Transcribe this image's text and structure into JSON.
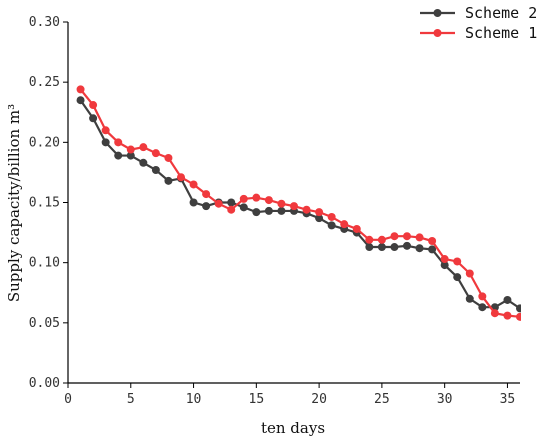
{
  "chart_data": {
    "type": "line",
    "xlabel": "ten days",
    "ylabel": "Supply capacity/billion m³",
    "xlim": [
      0,
      36
    ],
    "ylim": [
      0,
      0.3
    ],
    "x_ticks": [
      "0",
      "5",
      "10",
      "15",
      "20",
      "25",
      "30",
      "35"
    ],
    "y_ticks": [
      "0.00",
      "0.05",
      "0.10",
      "0.15",
      "0.20",
      "0.25",
      "0.30"
    ],
    "grid": false,
    "legend_position": "top-right",
    "x": [
      1,
      2,
      3,
      4,
      5,
      6,
      7,
      8,
      9,
      10,
      11,
      12,
      13,
      14,
      15,
      16,
      17,
      18,
      19,
      20,
      21,
      22,
      23,
      24,
      25,
      26,
      27,
      28,
      29,
      30,
      31,
      32,
      33,
      34,
      35,
      36
    ],
    "series": [
      {
        "name": "Scheme 2",
        "color": "#3f3f3f",
        "values": [
          0.235,
          0.22,
          0.2,
          0.189,
          0.189,
          0.183,
          0.177,
          0.168,
          0.17,
          0.15,
          0.147,
          0.15,
          0.15,
          0.146,
          0.142,
          0.143,
          0.143,
          0.143,
          0.141,
          0.137,
          0.131,
          0.128,
          0.125,
          0.113,
          0.113,
          0.113,
          0.114,
          0.112,
          0.111,
          0.098,
          0.088,
          0.07,
          0.063,
          0.063,
          0.069,
          0.062
        ]
      },
      {
        "name": "Scheme 1",
        "color": "#f0393d",
        "values": [
          0.244,
          0.231,
          0.21,
          0.2,
          0.194,
          0.196,
          0.191,
          0.187,
          0.171,
          0.165,
          0.157,
          0.149,
          0.144,
          0.153,
          0.154,
          0.152,
          0.149,
          0.147,
          0.144,
          0.142,
          0.138,
          0.132,
          0.128,
          0.119,
          0.119,
          0.122,
          0.122,
          0.121,
          0.118,
          0.103,
          0.101,
          0.091,
          0.072,
          0.058,
          0.056,
          0.055
        ]
      }
    ]
  }
}
